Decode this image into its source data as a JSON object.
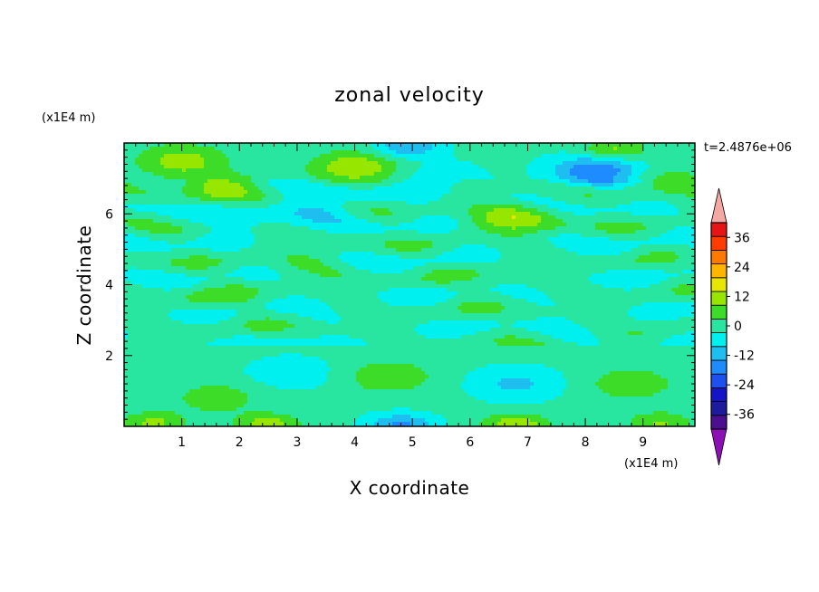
{
  "chart_data": {
    "type": "heatmap",
    "title": "zonal velocity",
    "xlabel": "X coordinate",
    "ylabel": "Z coordinate",
    "x_unit": "(x1E4 m)",
    "y_unit": "(x1E4 m)",
    "time_label": "t=2.4876e+06",
    "xlim": [
      0,
      9.9
    ],
    "ylim": [
      0,
      8
    ],
    "x_ticks": [
      "1",
      "2",
      "3",
      "4",
      "5",
      "6",
      "7",
      "8",
      "9"
    ],
    "y_ticks": [
      "2",
      "4",
      "6"
    ],
    "colorbar": {
      "ticks": [
        "36",
        "24",
        "12",
        "0",
        "-12",
        "-24",
        "-36"
      ],
      "levels": [
        -42,
        -36,
        -30,
        -24,
        -18,
        -12,
        -6,
        0,
        6,
        12,
        18,
        24,
        30,
        36,
        42
      ],
      "colors": [
        "#4b0f8f",
        "#1c1c9c",
        "#1414c8",
        "#1e50f0",
        "#1e8cff",
        "#1ebef0",
        "#00f0f0",
        "#28e6a0",
        "#3cdc28",
        "#96e600",
        "#e6e600",
        "#ffb400",
        "#ff7800",
        "#ff3c00",
        "#e61414"
      ],
      "under_color": "#8c10b4",
      "over_color": "#f4a8a4"
    },
    "features": [
      {
        "x": 4.6,
        "z": 1.4,
        "u": 10
      },
      {
        "x": 8.8,
        "z": 1.2,
        "u": 9
      },
      {
        "x": 6.8,
        "z": 1.2,
        "u": -9
      },
      {
        "x": 2.9,
        "z": 1.5,
        "u": -6
      },
      {
        "x": 1.6,
        "z": 0.8,
        "u": 8
      },
      {
        "x": 4.8,
        "z": 0.05,
        "u": -15
      },
      {
        "x": 2.5,
        "z": 0.05,
        "u": 14
      },
      {
        "x": 6.8,
        "z": 0.05,
        "u": 16
      },
      {
        "x": 0.5,
        "z": 0.1,
        "u": 12
      },
      {
        "x": 9.3,
        "z": 0.1,
        "u": 11
      },
      {
        "x": 4.0,
        "z": 7.3,
        "u": 16
      },
      {
        "x": 1.0,
        "z": 7.5,
        "u": 14
      },
      {
        "x": 8.5,
        "z": 7.8,
        "u": 13
      },
      {
        "x": 8.2,
        "z": 7.2,
        "u": -20
      },
      {
        "x": 1.8,
        "z": 6.6,
        "u": 14
      },
      {
        "x": 6.8,
        "z": 5.9,
        "u": 13
      },
      {
        "x": 3.5,
        "z": 6.3,
        "u": -8
      },
      {
        "x": 2.0,
        "z": 6.1,
        "u": -9
      },
      {
        "x": 5.5,
        "z": 7.0,
        "u": -6
      },
      {
        "x": 9.4,
        "z": 6.9,
        "u": 8
      },
      {
        "x": 4.9,
        "z": 7.9,
        "u": -14
      },
      {
        "x": 3.0,
        "z": 4.6,
        "u": 4
      },
      {
        "x": 6.5,
        "z": 4.2,
        "u": 3
      },
      {
        "x": 1.5,
        "z": 3.6,
        "u": 4
      }
    ]
  }
}
